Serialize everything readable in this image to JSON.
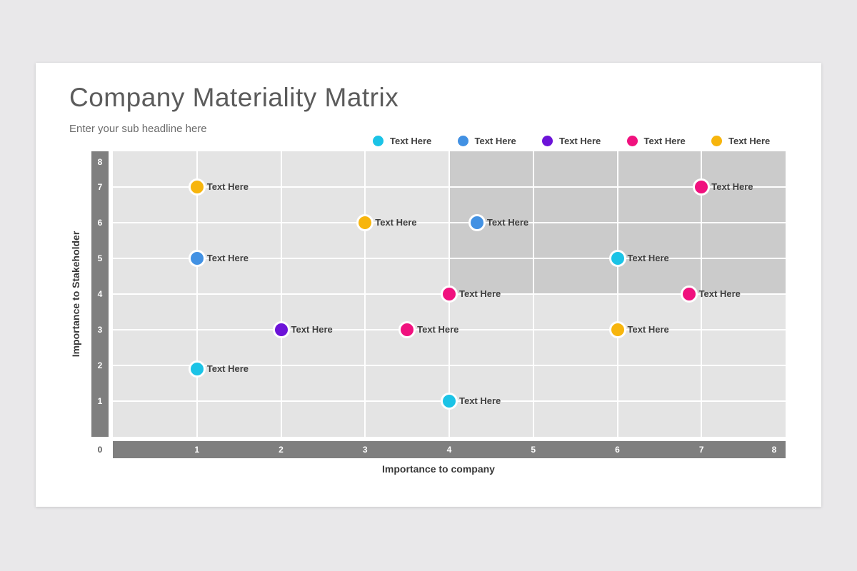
{
  "header": {
    "title": "Company Materiality Matrix",
    "subtitle": "Enter your sub headline here"
  },
  "legend": {
    "items": [
      {
        "label": "Text Here",
        "color_key": "cyan"
      },
      {
        "label": "Text Here",
        "color_key": "blue"
      },
      {
        "label": "Text Here",
        "color_key": "purple"
      },
      {
        "label": "Text Here",
        "color_key": "pink"
      },
      {
        "label": "Text Here",
        "color_key": "yellow"
      }
    ]
  },
  "colors": {
    "cyan": "#1bc3e6",
    "blue": "#4291e3",
    "purple": "#6c13d8",
    "pink": "#f0117e",
    "yellow": "#f7b50d",
    "axis_bar": "#7f7f7f",
    "plot_background": "#e4e4e4",
    "highlight_background": "#cbcbcb",
    "gridline": "#ffffff",
    "page_background": "#e9e8ea",
    "slide_background": "#ffffff"
  },
  "chart_data": {
    "type": "scatter",
    "title": "Company Materiality Matrix",
    "xlabel": "Importance to company",
    "ylabel": "Importance to Stakeholder",
    "xlim": [
      0,
      8
    ],
    "ylim": [
      0,
      8
    ],
    "x_ticks": [
      0,
      1,
      2,
      3,
      4,
      5,
      6,
      7,
      8
    ],
    "y_ticks": [
      0,
      1,
      2,
      3,
      4,
      5,
      6,
      7,
      8
    ],
    "grid": true,
    "legend_position": "top",
    "point_label": "Text Here",
    "highlight_region": {
      "x_range": [
        4,
        8
      ],
      "y_range": [
        4,
        8
      ]
    },
    "series": [
      {
        "name": "Text Here",
        "color_key": "cyan",
        "points": [
          {
            "x": 1,
            "y": 1.9,
            "label": "Text Here"
          },
          {
            "x": 4,
            "y": 1,
            "label": "Text Here"
          },
          {
            "x": 6,
            "y": 5,
            "label": "Text Here"
          }
        ]
      },
      {
        "name": "Text Here",
        "color_key": "blue",
        "points": [
          {
            "x": 1,
            "y": 5,
            "label": "Text Here"
          },
          {
            "x": 4.33,
            "y": 6,
            "label": "Text Here"
          }
        ]
      },
      {
        "name": "Text Here",
        "color_key": "purple",
        "points": [
          {
            "x": 2,
            "y": 3,
            "label": "Text Here"
          }
        ]
      },
      {
        "name": "Text Here",
        "color_key": "pink",
        "points": [
          {
            "x": 3.5,
            "y": 3,
            "label": "Text Here"
          },
          {
            "x": 4,
            "y": 4,
            "label": "Text Here"
          },
          {
            "x": 6.85,
            "y": 4,
            "label": "Text Here"
          },
          {
            "x": 7,
            "y": 7,
            "label": "Text Here"
          }
        ]
      },
      {
        "name": "Text Here",
        "color_key": "yellow",
        "points": [
          {
            "x": 1,
            "y": 7,
            "label": "Text Here"
          },
          {
            "x": 3,
            "y": 6,
            "label": "Text Here"
          },
          {
            "x": 6,
            "y": 3,
            "label": "Text Here"
          }
        ]
      }
    ]
  }
}
